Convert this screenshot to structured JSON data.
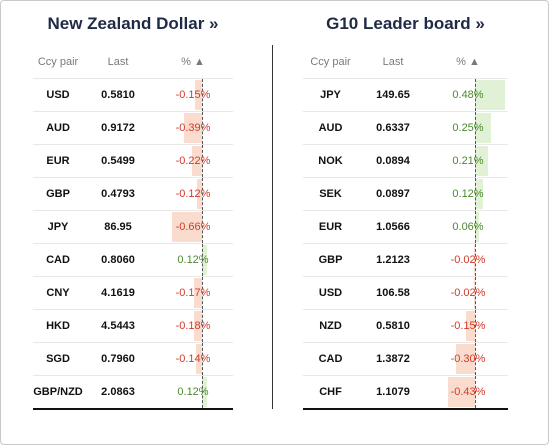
{
  "colors": {
    "negative_text": "#d23b2b",
    "positive_text": "#4a8a2e",
    "negative_bar": "#f9dccd",
    "positive_bar": "#e1f1d6"
  },
  "nzd": {
    "title": "New Zealand Dollar »",
    "headers": {
      "pair": "Ccy pair",
      "last": "Last",
      "pct": "% ▲"
    },
    "max_abs": 0.66,
    "rows": [
      {
        "pair": "USD",
        "last": "0.5810",
        "pct": "-0.15%",
        "value": -0.15
      },
      {
        "pair": "AUD",
        "last": "0.9172",
        "pct": "-0.39%",
        "value": -0.39
      },
      {
        "pair": "EUR",
        "last": "0.5499",
        "pct": "-0.22%",
        "value": -0.22
      },
      {
        "pair": "GBP",
        "last": "0.4793",
        "pct": "-0.12%",
        "value": -0.12
      },
      {
        "pair": "JPY",
        "last": "86.95",
        "pct": "-0.66%",
        "value": -0.66
      },
      {
        "pair": "CAD",
        "last": "0.8060",
        "pct": "0.12%",
        "value": 0.12
      },
      {
        "pair": "CNY",
        "last": "4.1619",
        "pct": "-0.17%",
        "value": -0.17
      },
      {
        "pair": "HKD",
        "last": "4.5443",
        "pct": "-0.18%",
        "value": -0.18
      },
      {
        "pair": "SGD",
        "last": "0.7960",
        "pct": "-0.14%",
        "value": -0.14
      },
      {
        "pair": "GBP/NZD",
        "last": "2.0863",
        "pct": "0.12%",
        "value": 0.12
      }
    ]
  },
  "g10": {
    "title": "G10 Leader board »",
    "headers": {
      "pair": "Ccy pair",
      "last": "Last",
      "pct": "% ▲"
    },
    "max_abs": 0.48,
    "rows": [
      {
        "pair": "JPY",
        "last": "149.65",
        "pct": "0.48%",
        "value": 0.48
      },
      {
        "pair": "AUD",
        "last": "0.6337",
        "pct": "0.25%",
        "value": 0.25
      },
      {
        "pair": "NOK",
        "last": "0.0894",
        "pct": "0.21%",
        "value": 0.21
      },
      {
        "pair": "SEK",
        "last": "0.0897",
        "pct": "0.12%",
        "value": 0.12
      },
      {
        "pair": "EUR",
        "last": "1.0566",
        "pct": "0.06%",
        "value": 0.06
      },
      {
        "pair": "GBP",
        "last": "1.2123",
        "pct": "-0.02%",
        "value": -0.02
      },
      {
        "pair": "USD",
        "last": "106.58",
        "pct": "-0.02%",
        "value": -0.02
      },
      {
        "pair": "NZD",
        "last": "0.5810",
        "pct": "-0.15%",
        "value": -0.15
      },
      {
        "pair": "CAD",
        "last": "1.3872",
        "pct": "-0.30%",
        "value": -0.3
      },
      {
        "pair": "CHF",
        "last": "1.1079",
        "pct": "-0.43%",
        "value": -0.43
      }
    ]
  }
}
